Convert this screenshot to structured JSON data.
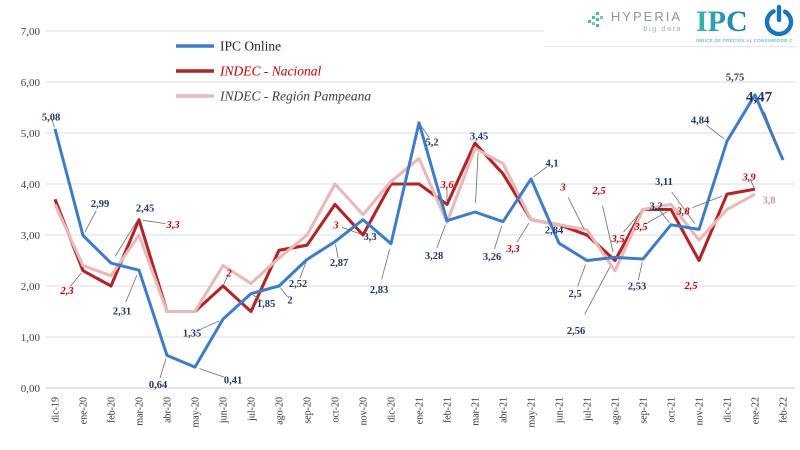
{
  "branding": {
    "hyperia": {
      "name": "HYPERIA",
      "tagline": "big data"
    },
    "ipco": {
      "name": "IPC",
      "subtitle": "ÍNDICE DE PRECIOS AL CONSUMIDOR ONLINE DE BAHÍA BLANCA"
    }
  },
  "chart_data": {
    "type": "line",
    "title": "",
    "xlabel": "",
    "ylabel": "",
    "ylim": [
      0,
      7
    ],
    "grid": true,
    "legend_position": "top-left-inside",
    "decimal_style": "comma",
    "y_ticks": [
      "0,00",
      "1,00",
      "2,00",
      "3,00",
      "4,00",
      "5,00",
      "6,00",
      "7,00"
    ],
    "categories": [
      "dic-19",
      "ene-20",
      "feb-20",
      "mar-20",
      "abr-20",
      "may-20",
      "jun-20",
      "jul-20",
      "ago-20",
      "sep-20",
      "oct-20",
      "nov-20",
      "dic-20",
      "ene-21",
      "feb-21",
      "mar-21",
      "abr-21",
      "may-21",
      "jun-21",
      "jul-21",
      "ago-21",
      "sep-21",
      "oct-21",
      "nov-21",
      "dic-21",
      "ene-22",
      "feb-22"
    ],
    "series": [
      {
        "name": "IPC Online",
        "color": "#3F7CC8",
        "label_color": "#1F3864",
        "label_style": "normal",
        "values": [
          5.08,
          2.99,
          2.45,
          2.31,
          0.64,
          0.41,
          1.35,
          1.85,
          2.0,
          2.52,
          2.87,
          3.3,
          2.83,
          5.2,
          3.28,
          3.45,
          3.26,
          4.1,
          2.84,
          2.5,
          2.56,
          2.53,
          3.2,
          3.11,
          4.84,
          5.75,
          4.47
        ],
        "labels": [
          "5,08",
          "2,99",
          "2,45",
          "2,31",
          "0,64",
          "0,41",
          "1,35",
          "1,85",
          "2",
          "2,52",
          "2,87",
          "3,3",
          "2,83",
          "5,2",
          "3,28",
          "3,45",
          "3,26",
          "4,1",
          "2,84",
          "2,5",
          "2,56",
          "2,53",
          "3,2",
          "3,11",
          "4,84",
          "5,75",
          "4,47"
        ]
      },
      {
        "name": "INDEC - Nacional",
        "color": "#B12427",
        "label_color": "#C00000",
        "label_style": "italic",
        "values": [
          3.7,
          2.3,
          2.0,
          3.3,
          1.5,
          1.5,
          2.0,
          1.5,
          2.7,
          2.8,
          3.6,
          3.0,
          4.0,
          4.0,
          3.6,
          4.8,
          4.2,
          3.3,
          3.2,
          3.0,
          2.5,
          3.5,
          3.5,
          2.5,
          3.8,
          3.9,
          null
        ],
        "labels": [
          null,
          "2,3",
          null,
          "3,3",
          null,
          null,
          "2",
          null,
          null,
          null,
          null,
          "3",
          null,
          null,
          "3,6",
          null,
          null,
          "3,3",
          null,
          "3",
          "2,5",
          "3,5",
          "3,5",
          "2,5",
          "3,8",
          "3,9",
          null
        ]
      },
      {
        "name": "INDEC - Región Pampeana",
        "color": "#E7B9B8",
        "label_color": "#CD9C9B",
        "label_style": "normal",
        "values": [
          3.6,
          2.4,
          2.2,
          3.0,
          1.5,
          1.5,
          2.4,
          2.05,
          2.55,
          3.0,
          4.0,
          3.4,
          4.05,
          4.5,
          3.25,
          4.7,
          4.4,
          3.3,
          3.2,
          3.1,
          2.3,
          3.5,
          3.6,
          2.9,
          3.5,
          3.8,
          null
        ],
        "labels": [
          null,
          null,
          null,
          null,
          null,
          null,
          null,
          null,
          null,
          null,
          null,
          null,
          null,
          null,
          null,
          null,
          null,
          null,
          null,
          null,
          null,
          null,
          null,
          null,
          null,
          "3,8",
          null
        ]
      }
    ]
  }
}
